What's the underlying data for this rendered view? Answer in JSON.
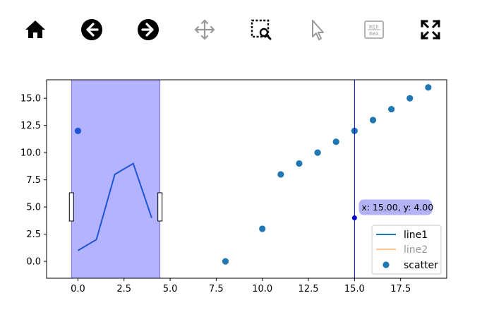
{
  "toolbar": {
    "items": [
      {
        "icon": "home-icon",
        "enabled": true
      },
      {
        "icon": "arrow-left-icon",
        "enabled": true
      },
      {
        "icon": "arrow-right-icon",
        "enabled": true
      },
      {
        "icon": "move-icon",
        "enabled": false
      },
      {
        "icon": "zoom-rect-icon",
        "enabled": true
      },
      {
        "icon": "pointer-icon",
        "enabled": false
      },
      {
        "icon": "min-max-icon",
        "enabled": false,
        "label_top": "min",
        "label_bottom": "max"
      },
      {
        "icon": "fullscreen-icon",
        "enabled": true
      }
    ]
  },
  "colors": {
    "span_fill": "#b3b3ff",
    "span_edge": "#6666ee",
    "cursor_line": "#0000cc",
    "line1": "#1f77b4",
    "line2": "#ff7f0e",
    "scatter": "#1f77b4",
    "highlight": "#1f55d4",
    "readout_bg": "#b3b3f5"
  },
  "readout": {
    "text": "x: 15.00, y: 4.00"
  },
  "chart_data": {
    "type": "line",
    "xlim": [
      -1.7,
      20.0
    ],
    "ylim": [
      -1.55,
      16.7
    ],
    "xticks": [
      0.0,
      2.5,
      5.0,
      7.5,
      10.0,
      12.5,
      15.0,
      17.5
    ],
    "xtick_labels": [
      "0.0",
      "2.5",
      "5.0",
      "7.5",
      "10.0",
      "12.5",
      "15.0",
      "17.5"
    ],
    "yticks": [
      0.0,
      2.5,
      5.0,
      7.5,
      10.0,
      12.5,
      15.0
    ],
    "ytick_labels": [
      "0.0",
      "2.5",
      "5.0",
      "7.5",
      "10.0",
      "12.5",
      "15.0"
    ],
    "grid": false,
    "legend_position": "lower-right",
    "span": {
      "x0": -0.35,
      "x1": 4.45
    },
    "cursor": {
      "x": 15.0,
      "y": 4.0
    },
    "series": [
      {
        "name": "line1",
        "type": "line",
        "x": [
          0,
          1,
          2,
          3,
          4
        ],
        "y": [
          1,
          2,
          8,
          9,
          4
        ],
        "alpha": 1.0
      },
      {
        "name": "line2",
        "type": "line",
        "x": [],
        "y": [],
        "alpha": 0.45
      },
      {
        "name": "scatter",
        "type": "scatter",
        "x": [
          0,
          8,
          10,
          11,
          12,
          13,
          14,
          15,
          16,
          17,
          18,
          19
        ],
        "y": [
          12,
          0,
          3,
          8,
          9,
          10,
          11,
          12,
          13,
          14,
          15,
          16
        ]
      }
    ]
  }
}
